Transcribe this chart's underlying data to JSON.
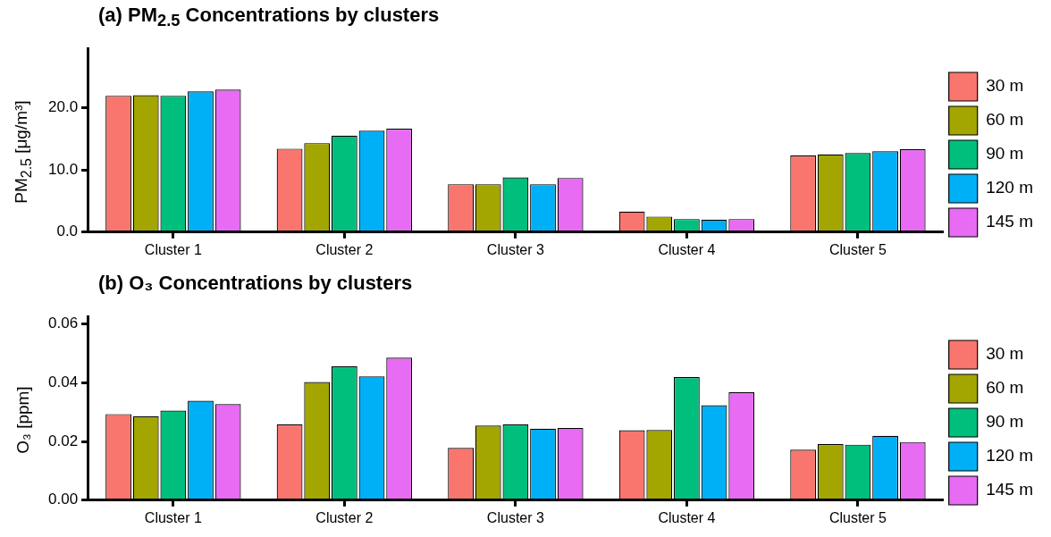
{
  "chart_data": [
    {
      "type": "bar",
      "title": "(a) PM$_{2.5}$ Concentrations by clusters",
      "ylabel": "PM$_{2.5}$ [μg/m³]",
      "categories": [
        "Cluster 1",
        "Cluster 2",
        "Cluster 3",
        "Cluster 4",
        "Cluster 5"
      ],
      "series": [
        {
          "name": "30 m",
          "color": "#f8766d",
          "values": [
            21.9,
            13.4,
            7.7,
            3.3,
            12.3
          ]
        },
        {
          "name": "60 m",
          "color": "#a3a500",
          "values": [
            22.0,
            14.3,
            7.7,
            2.5,
            12.5
          ]
        },
        {
          "name": "90 m",
          "color": "#00bf7d",
          "values": [
            21.9,
            15.5,
            8.8,
            2.1,
            12.7
          ]
        },
        {
          "name": "120 m",
          "color": "#00b0f6",
          "values": [
            22.6,
            16.3,
            7.7,
            2.0,
            13.0
          ]
        },
        {
          "name": "145 m",
          "color": "#e76bf3",
          "values": [
            22.9,
            16.6,
            8.7,
            2.1,
            13.3
          ]
        }
      ],
      "ylim": [
        0,
        29.5
      ],
      "yticks": [
        {
          "value": 0,
          "label": "0.0"
        },
        {
          "value": 10,
          "label": "10.0"
        },
        {
          "value": 20,
          "label": "20.0"
        }
      ],
      "legend": "right"
    },
    {
      "type": "bar",
      "title": "(b) O₃ Concentrations by clusters",
      "ylabel": "O₃ [ppm]",
      "categories": [
        "Cluster 1",
        "Cluster 2",
        "Cluster 3",
        "Cluster 4",
        "Cluster 5"
      ],
      "series": [
        {
          "name": "30 m",
          "color": "#f8766d",
          "values": [
            0.0293,
            0.0258,
            0.0178,
            0.0238,
            0.0172
          ]
        },
        {
          "name": "60 m",
          "color": "#a3a500",
          "values": [
            0.0285,
            0.0402,
            0.0254,
            0.0239,
            0.0191
          ]
        },
        {
          "name": "90 m",
          "color": "#00bf7d",
          "values": [
            0.0305,
            0.0455,
            0.0258,
            0.0419,
            0.0189
          ]
        },
        {
          "name": "120 m",
          "color": "#00b0f6",
          "values": [
            0.0338,
            0.0421,
            0.0243,
            0.0323,
            0.0219
          ]
        },
        {
          "name": "145 m",
          "color": "#e76bf3",
          "values": [
            0.0327,
            0.0485,
            0.0246,
            0.0367,
            0.0198
          ]
        }
      ],
      "ylim": [
        0,
        0.0625
      ],
      "yticks": [
        {
          "value": 0,
          "label": "0.00"
        },
        {
          "value": 0.02,
          "label": "0.02"
        },
        {
          "value": 0.04,
          "label": "0.04"
        },
        {
          "value": 0.06,
          "label": "0.06"
        }
      ],
      "legend": "right"
    }
  ]
}
